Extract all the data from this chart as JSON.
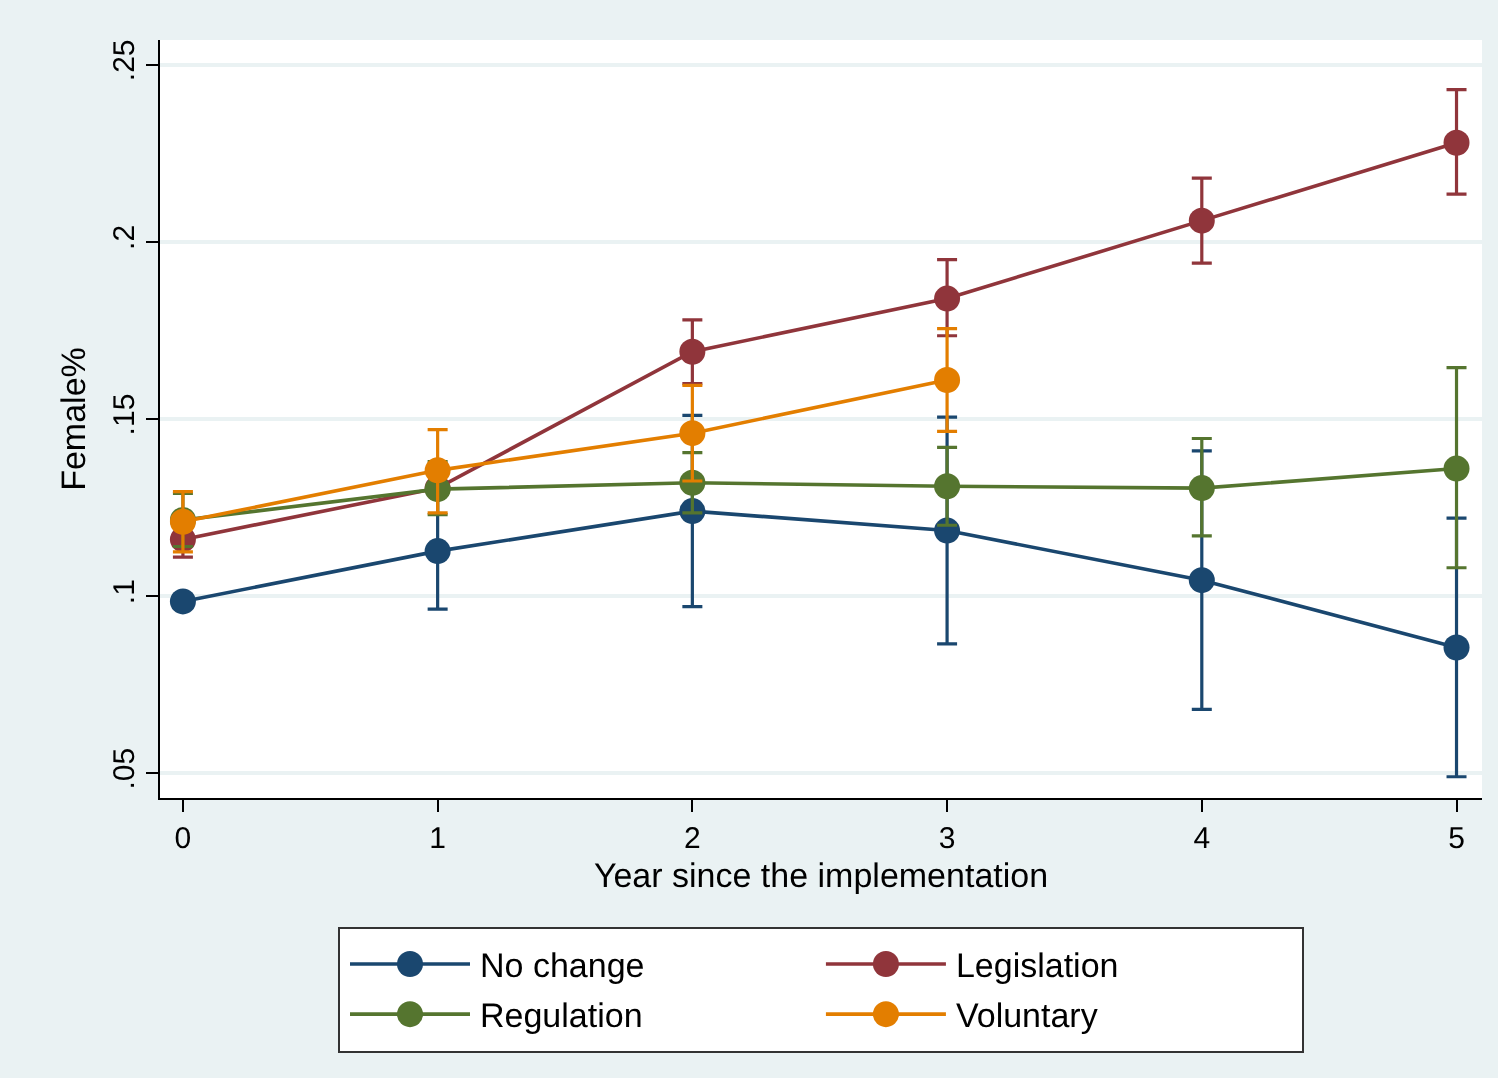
{
  "chart_data": {
    "type": "line",
    "xlabel": "Year since the implementation",
    "ylabel": "Female%",
    "x": [
      0,
      1,
      2,
      3,
      4,
      5
    ],
    "xlim": [
      -0.09,
      5.1
    ],
    "xticks": [
      0,
      1,
      2,
      3,
      4,
      5
    ],
    "ylim": [
      0.043,
      0.257
    ],
    "yticks": [
      {
        "value": 0.05,
        "label": ".05"
      },
      {
        "value": 0.1,
        "label": ".1"
      },
      {
        "value": 0.15,
        "label": ".15"
      },
      {
        "value": 0.2,
        "label": ".2"
      },
      {
        "value": 0.25,
        "label": ".25"
      }
    ],
    "grid": "y",
    "legend": "bottom",
    "marker": "circle",
    "line_style": "solid",
    "series": [
      {
        "name": "No change",
        "color": "#1a476f",
        "values": [
          0.0985,
          0.1127,
          0.124,
          0.1185,
          0.1045,
          0.0855
        ],
        "errors": [
          null,
          [
            0.0963,
            0.129
          ],
          [
            0.097,
            0.151
          ],
          [
            0.0865,
            0.1505
          ],
          [
            0.068,
            0.141
          ],
          [
            0.049,
            0.122
          ]
        ]
      },
      {
        "name": "Legislation",
        "color": "#90353b",
        "values": [
          0.116,
          0.1305,
          0.169,
          0.184,
          0.206,
          0.228
        ],
        "errors": [
          [
            0.111,
            0.116
          ],
          null,
          [
            0.16,
            0.178
          ],
          [
            0.1735,
            0.195
          ],
          [
            0.194,
            0.218
          ],
          [
            0.2135,
            0.243
          ]
        ]
      },
      {
        "name": "Regulation",
        "color": "#55752f",
        "values": [
          0.1215,
          0.1302,
          0.132,
          0.131,
          0.1305,
          0.136
        ],
        "errors": [
          [
            0.114,
            0.129
          ],
          [
            0.123,
            0.138
          ],
          [
            0.1235,
            0.1405
          ],
          [
            0.12,
            0.142
          ],
          [
            0.117,
            0.1445
          ],
          [
            0.108,
            0.1645
          ]
        ]
      },
      {
        "name": "Voluntary",
        "color": "#e37e00",
        "values": [
          0.121,
          0.1355,
          0.146,
          0.161,
          null,
          null
        ],
        "errors": [
          [
            0.1125,
            0.1295
          ],
          [
            0.1235,
            0.147
          ],
          [
            0.1325,
            0.1595
          ],
          [
            0.1465,
            0.1755
          ],
          null,
          null
        ]
      }
    ]
  }
}
